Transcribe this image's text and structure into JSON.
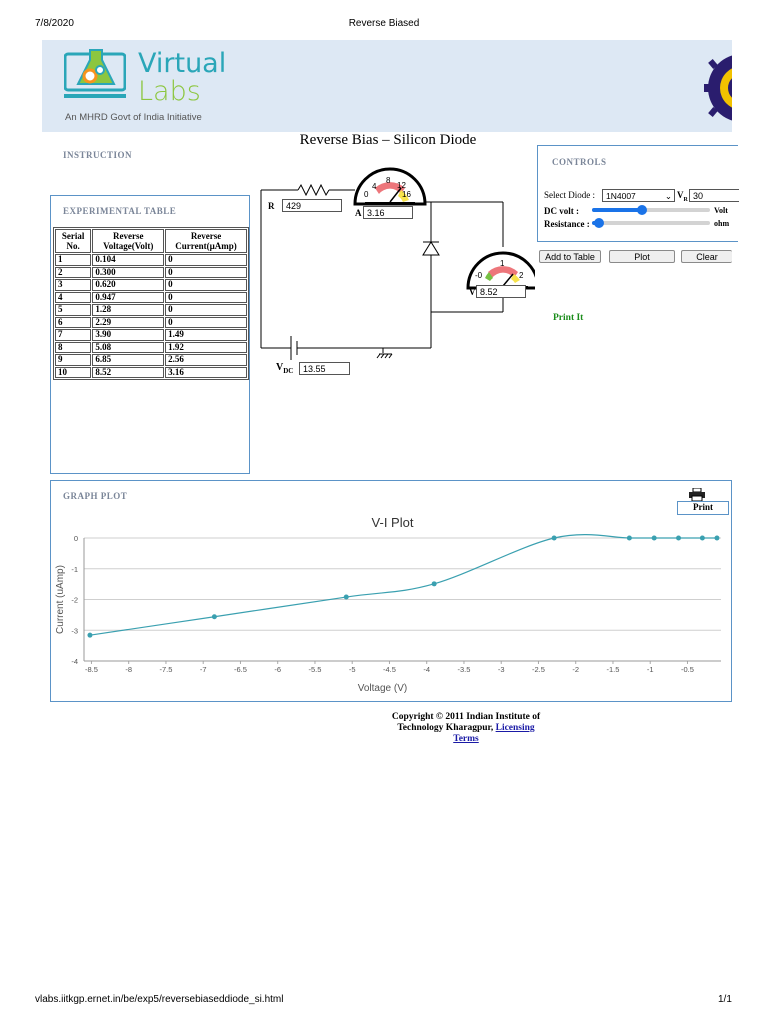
{
  "print_header": {
    "date": "7/8/2020",
    "title": "Reverse Biased"
  },
  "print_footer": {
    "url": "vlabs.iitkgp.ernet.in/be/exp5/reversebiaseddiode_si.html",
    "page": "1/1"
  },
  "banner": {
    "logo_top": "Virtual",
    "logo_bottom": "Labs",
    "tagline": "An MHRD Govt of India Initiative"
  },
  "page_title": "Reverse Bias – Silicon Diode",
  "instruction_label": "INSTRUCTION",
  "experimental_table": {
    "title": "EXPERIMENTAL TABLE",
    "headers": [
      "Serial No.",
      "Reverse Voltage(Volt)",
      "Reverse Current(µAmp)"
    ],
    "rows": [
      [
        "1",
        "0.104",
        "0"
      ],
      [
        "2",
        "0.300",
        "0"
      ],
      [
        "3",
        "0.620",
        "0"
      ],
      [
        "4",
        "0.947",
        "0"
      ],
      [
        "5",
        "1.28",
        "0"
      ],
      [
        "6",
        "2.29",
        "0"
      ],
      [
        "7",
        "3.90",
        "1.49"
      ],
      [
        "8",
        "5.08",
        "1.92"
      ],
      [
        "9",
        "6.85",
        "2.56"
      ],
      [
        "10",
        "8.52",
        "3.16"
      ]
    ]
  },
  "circuit": {
    "r_label": "R",
    "r_value": "429",
    "a_label": "A",
    "a_value": "3.16",
    "v_label": "V",
    "v_value": "8.52",
    "vdc_label": "V",
    "vdc_sub": "DC",
    "vdc_value": "13.55",
    "ammeter_ticks": [
      "0",
      "4",
      "8",
      "12",
      "16"
    ],
    "voltmeter_ticks": [
      "-0",
      "1",
      "2"
    ]
  },
  "controls": {
    "title": "CONTROLS",
    "select_label": "Select Diode :",
    "select_value": "1N4007",
    "vr_label": "V",
    "vr_sub": "R",
    "vr_value": "30",
    "dc_label": "DC volt :",
    "dc_unit": "Volt",
    "dc_slider_level": 0.42,
    "res_label": "Resistance :",
    "res_unit": "ohm",
    "res_slider_level": 0.06,
    "add_button": "Add to Table",
    "plot_button": "Plot",
    "clear_button": "Clear",
    "print_link": "Print It"
  },
  "graph_panel": {
    "title": "GRAPH PLOT",
    "print_button": "Print"
  },
  "chart_data": {
    "type": "line",
    "title": "V-I Plot",
    "xlabel": "Voltage (V)",
    "ylabel": "Current (uAmp)",
    "xlim": [
      -8.6,
      -0.05
    ],
    "ylim": [
      -4,
      0
    ],
    "xticks": [
      "-8.5",
      "-8",
      "-7.5",
      "-7",
      "-6.5",
      "-6",
      "-5.5",
      "-5",
      "-4.5",
      "-4",
      "-3.5",
      "-3",
      "-2.5",
      "-2",
      "-1.5",
      "-1",
      "-0.5"
    ],
    "yticks": [
      "0",
      "-1",
      "-2",
      "-3",
      "-4"
    ],
    "grid": true,
    "color": "#3aa0b0",
    "series": [
      {
        "x": [
          -8.52,
          -6.85,
          -5.08,
          -3.9,
          -2.29,
          -1.28,
          -0.947,
          -0.62,
          -0.3,
          -0.104
        ],
        "y": [
          -3.16,
          -2.56,
          -1.92,
          -1.49,
          0,
          0,
          0,
          0,
          0,
          0
        ]
      }
    ]
  },
  "copyright": {
    "line1": "Copyright © 2011 Indian Institute of",
    "line2": "Technology Kharagpur,",
    "link1": "Licensing",
    "link2": "Terms"
  }
}
